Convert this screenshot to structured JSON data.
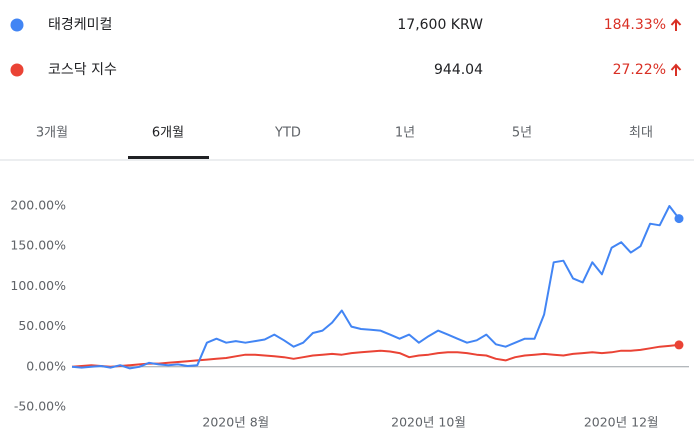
{
  "summary": [
    {
      "price": "17,600 KRW",
      "change": "184.33%"
    },
    {
      "price": "944.04",
      "change": "27.22%"
    }
  ],
  "tabs": {
    "items": [
      "3개월",
      "6개월",
      "YTD",
      "1년",
      "5년",
      "최대"
    ],
    "selected": 1
  },
  "chart_data": {
    "type": "line",
    "categories": [
      null,
      null,
      null,
      null,
      null,
      null,
      null,
      null,
      null,
      null,
      null,
      null,
      null,
      null,
      null,
      null,
      null,
      "2020년 8월",
      null,
      null,
      null,
      null,
      null,
      null,
      null,
      null,
      null,
      null,
      null,
      null,
      null,
      null,
      null,
      null,
      null,
      null,
      null,
      "2020년 10월",
      null,
      null,
      null,
      null,
      null,
      null,
      null,
      null,
      null,
      null,
      null,
      null,
      null,
      null,
      null,
      null,
      null,
      null,
      null,
      "2020년 12월",
      null,
      null,
      null,
      null,
      null,
      null
    ],
    "series": [
      {
        "name": "태경케미컬",
        "color": "#4285f4",
        "values": [
          0,
          -1,
          0,
          1,
          -1,
          2,
          -2,
          0,
          5,
          3,
          2,
          3,
          1,
          2,
          30,
          35,
          30,
          32,
          30,
          32,
          34,
          40,
          33,
          25,
          30,
          42,
          45,
          55,
          70,
          50,
          47,
          46,
          45,
          40,
          35,
          40,
          30,
          38,
          45,
          40,
          35,
          30,
          33,
          40,
          28,
          25,
          30,
          35,
          35,
          65,
          130,
          132,
          110,
          105,
          130,
          115,
          148,
          155,
          142,
          150,
          178,
          176,
          200,
          184.33
        ]
      },
      {
        "name": "코스닥 지수",
        "color": "#ea4335",
        "values": [
          0,
          1,
          2,
          1,
          0,
          1,
          2,
          3,
          4,
          4,
          5,
          6,
          7,
          8,
          9,
          10,
          11,
          13,
          15,
          15,
          14,
          13,
          12,
          10,
          12,
          14,
          15,
          16,
          15,
          17,
          18,
          19,
          20,
          19,
          17,
          12,
          14,
          15,
          17,
          18,
          18,
          17,
          15,
          14,
          10,
          8,
          12,
          14,
          15,
          16,
          15,
          14,
          16,
          17,
          18,
          17,
          18,
          20,
          20,
          21,
          23,
          25,
          26,
          27.22
        ]
      }
    ],
    "ylim": [
      -50,
      200
    ],
    "yticks": [
      {
        "value": 200,
        "label": "200.00%"
      },
      {
        "value": 150,
        "label": "150.00%"
      },
      {
        "value": 100,
        "label": "100.00%"
      },
      {
        "value": 50,
        "label": "50.00%"
      },
      {
        "value": 0,
        "label": "0.00%"
      },
      {
        "value": -50,
        "label": "-50.00%"
      }
    ],
    "zero_line": true
  }
}
